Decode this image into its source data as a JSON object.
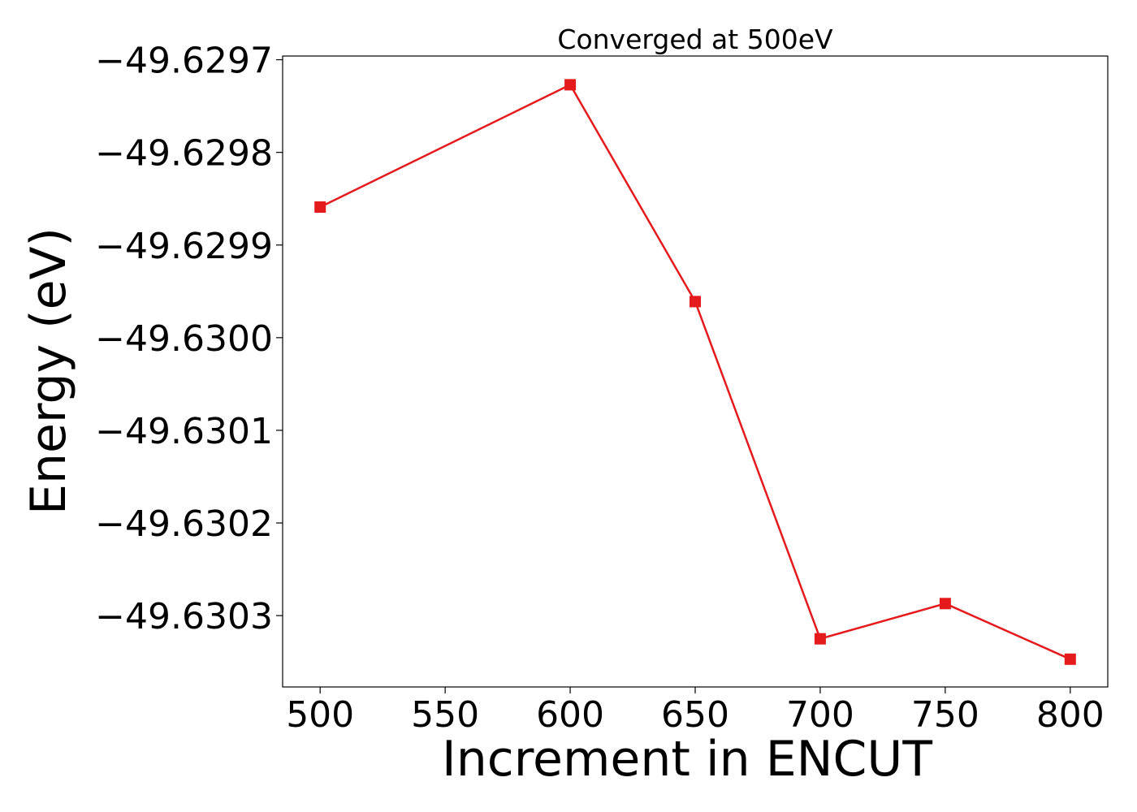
{
  "chart_data": {
    "type": "line",
    "title": "Converged at 500eV",
    "xlabel": "Increment in ENCUT",
    "ylabel": "Energy (eV)",
    "x": [
      500,
      600,
      650,
      700,
      750,
      800
    ],
    "series": [
      {
        "values": [
          -49.629859,
          -49.629727,
          -49.629961,
          -49.630325,
          -49.630287,
          -49.630347
        ]
      }
    ],
    "xlim": [
      485,
      815
    ],
    "ylim": [
      -49.630377,
      -49.629696
    ],
    "x_ticks": [
      500,
      550,
      600,
      650,
      700,
      750,
      800
    ],
    "x_tick_labels": [
      "500",
      "550",
      "600",
      "650",
      "700",
      "750",
      "800"
    ],
    "y_ticks": [
      -49.6297,
      -49.6298,
      -49.6299,
      -49.63,
      -49.6301,
      -49.6302,
      -49.6303
    ],
    "y_tick_labels": [
      "−49.6297",
      "−49.6298",
      "−49.6299",
      "−49.6300",
      "−49.6301",
      "−49.6302",
      "−49.6303"
    ],
    "grid": false,
    "marker": "square",
    "colors": {
      "line": "#e41a1c",
      "axes": "#000000",
      "background": "#ffffff"
    }
  }
}
